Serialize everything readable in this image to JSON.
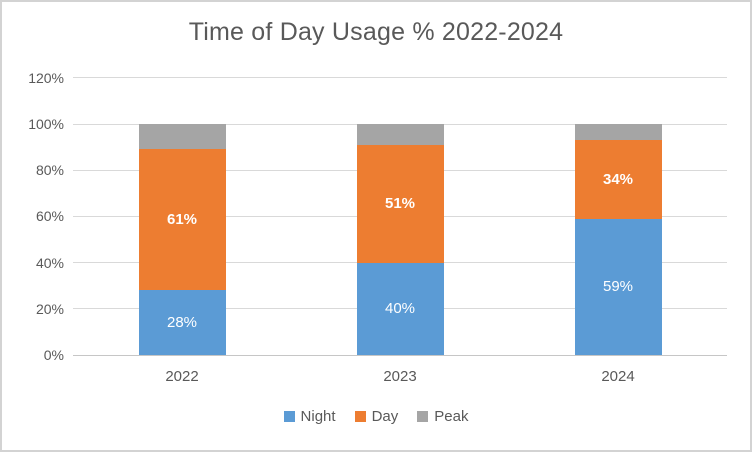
{
  "chart_data": {
    "type": "bar",
    "stacked": true,
    "title": "Time of Day Usage % 2022-2024",
    "categories": [
      "2022",
      "2023",
      "2024"
    ],
    "series": [
      {
        "name": "Night",
        "color": "#5B9BD5",
        "values": [
          28,
          40,
          59
        ],
        "data_labels": [
          "28%",
          "40%",
          "59%"
        ],
        "label_bold": false
      },
      {
        "name": "Day",
        "color": "#ED7D31",
        "values": [
          61,
          51,
          34
        ],
        "data_labels": [
          "61%",
          "51%",
          "34%"
        ],
        "label_bold": true
      },
      {
        "name": "Peak",
        "color": "#A5A5A5",
        "values": [
          11,
          9,
          7
        ],
        "data_labels": null,
        "label_bold": false
      }
    ],
    "y_axis": {
      "tick_labels": [
        "0%",
        "20%",
        "40%",
        "60%",
        "80%",
        "100%",
        "120%"
      ],
      "tick_values": [
        0,
        20,
        40,
        60,
        80,
        100,
        120
      ],
      "min": 0,
      "max": 120
    },
    "legend": {
      "position": "bottom",
      "entries": [
        "Night",
        "Day",
        "Peak"
      ]
    },
    "grid": true,
    "theme": {
      "text_color": "#595959",
      "data_label_color": "#FFFFFF",
      "gridline_color": "#D9D9D9",
      "axis_line_color": "#C6C6C6",
      "background": "#FFFFFF",
      "border_color": "#D3D3D3"
    }
  }
}
